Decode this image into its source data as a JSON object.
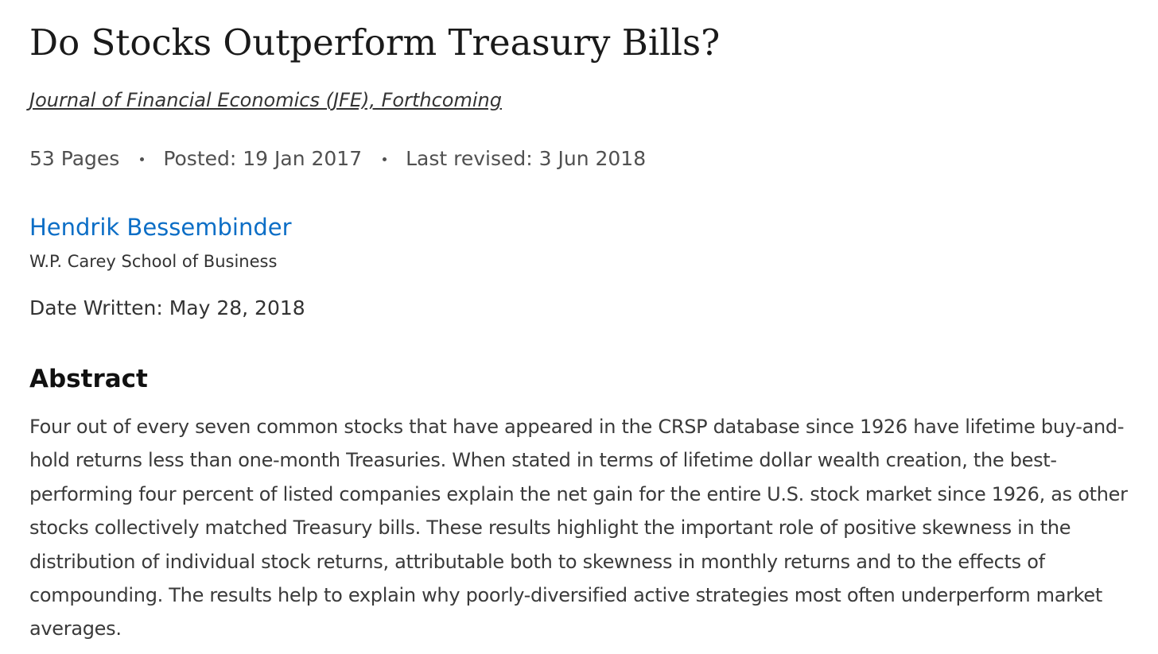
{
  "paper": {
    "title": "Do Stocks Outperform Treasury Bills?",
    "journal": "Journal of Financial Economics (JFE), Forthcoming",
    "meta": {
      "pages": "53 Pages",
      "posted": "Posted: 19 Jan 2017",
      "revised": "Last revised: 3 Jun 2018"
    },
    "author": {
      "name": "Hendrik Bessembinder",
      "affiliation": "W.P. Carey School of Business"
    },
    "date_written": "Date Written: May 28, 2018",
    "abstract": {
      "heading": "Abstract",
      "text": "Four out of every seven common stocks that have appeared in the CRSP database since 1926 have lifetime buy-and-hold returns less than one-month Treasuries. When stated in terms of lifetime dollar wealth creation, the best-performing four percent of listed companies explain the net gain for the entire U.S. stock market since 1926, as other stocks collectively matched Treasury bills. These results highlight the important role of positive skewness in the distribution of individual stock returns, attributable both to skewness in monthly returns and to the effects of compounding. The results help to explain why poorly-diversified active strategies most often underperform market averages."
    }
  },
  "colors": {
    "link": "#0c6ec6",
    "text": "#333333",
    "muted": "#505050"
  }
}
